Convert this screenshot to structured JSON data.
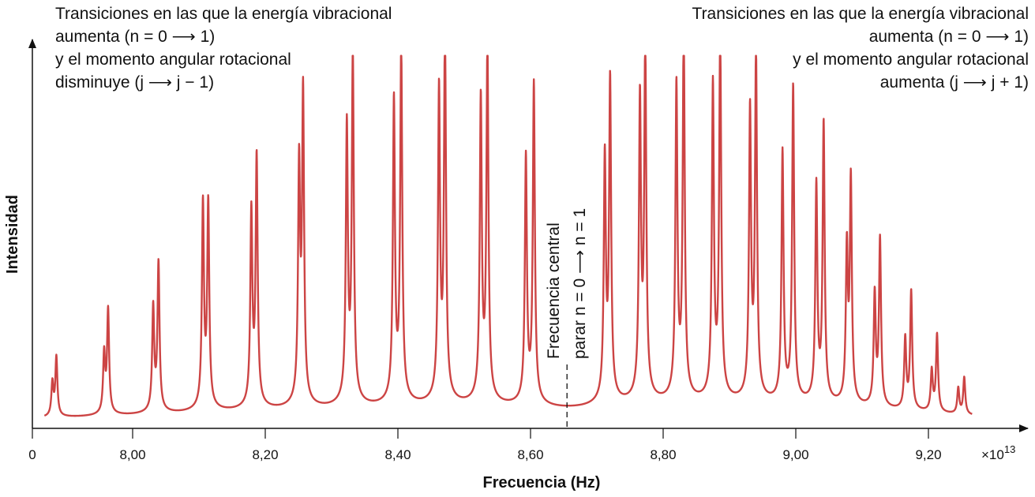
{
  "chart_data": {
    "type": "line",
    "title": "",
    "xlabel": "Frecuencia (Hz)",
    "ylabel": "Intensidad",
    "x_multiplier": "×10",
    "x_multiplier_exp": "13",
    "x_ticks": [
      "0",
      "8,00",
      "8,20",
      "8,40",
      "8,60",
      "8,80",
      "9,00",
      "9,20"
    ],
    "x_tick_values": [
      null,
      8.0,
      8.2,
      8.4,
      8.6,
      8.8,
      9.0,
      9.2
    ],
    "xlim": [
      7.85,
      9.3
    ],
    "ylim": [
      0,
      1.05
    ],
    "grid": false,
    "line_color": "#cc4444",
    "central_frequency": 8.655,
    "peaks": [
      {
        "f": 7.879,
        "i": 0.09
      },
      {
        "f": 7.885,
        "i": 0.16
      },
      {
        "f": 7.957,
        "i": 0.16
      },
      {
        "f": 7.963,
        "i": 0.28
      },
      {
        "f": 8.031,
        "i": 0.28
      },
      {
        "f": 8.039,
        "i": 0.4
      },
      {
        "f": 8.106,
        "i": 0.55
      },
      {
        "f": 8.114,
        "i": 0.55
      },
      {
        "f": 8.179,
        "i": 0.52
      },
      {
        "f": 8.187,
        "i": 0.67
      },
      {
        "f": 8.251,
        "i": 0.63
      },
      {
        "f": 8.257,
        "i": 0.83
      },
      {
        "f": 8.323,
        "i": 0.74
      },
      {
        "f": 8.332,
        "i": 0.94
      },
      {
        "f": 8.394,
        "i": 0.81
      },
      {
        "f": 8.405,
        "i": 0.96
      },
      {
        "f": 8.462,
        "i": 0.83
      },
      {
        "f": 8.471,
        "i": 1.0
      },
      {
        "f": 8.525,
        "i": 0.81
      },
      {
        "f": 8.535,
        "i": 0.96
      },
      {
        "f": 8.593,
        "i": 0.66
      },
      {
        "f": 8.605,
        "i": 0.86
      },
      {
        "f": 8.712,
        "i": 0.65
      },
      {
        "f": 8.72,
        "i": 0.86
      },
      {
        "f": 8.765,
        "i": 0.8
      },
      {
        "f": 8.773,
        "i": 0.96
      },
      {
        "f": 8.82,
        "i": 0.84
      },
      {
        "f": 8.831,
        "i": 1.0
      },
      {
        "f": 8.875,
        "i": 0.84
      },
      {
        "f": 8.886,
        "i": 0.99
      },
      {
        "f": 8.931,
        "i": 0.77
      },
      {
        "f": 8.94,
        "i": 0.93
      },
      {
        "f": 8.98,
        "i": 0.67
      },
      {
        "f": 8.996,
        "i": 0.85
      },
      {
        "f": 9.031,
        "i": 0.58
      },
      {
        "f": 9.042,
        "i": 0.75
      },
      {
        "f": 9.077,
        "i": 0.41
      },
      {
        "f": 9.083,
        "i": 0.6
      },
      {
        "f": 9.119,
        "i": 0.3
      },
      {
        "f": 9.127,
        "i": 0.45
      },
      {
        "f": 9.165,
        "i": 0.19
      },
      {
        "f": 9.174,
        "i": 0.32
      },
      {
        "f": 9.205,
        "i": 0.11
      },
      {
        "f": 9.213,
        "i": 0.21
      },
      {
        "f": 9.245,
        "i": 0.07
      },
      {
        "f": 9.254,
        "i": 0.1
      }
    ],
    "annotations": {
      "left": [
        "Transiciones en las que la energía vibracional",
        "aumenta  (n = 0 ⟶ 1)",
        "y el momento angular rotacional",
        "disminuye (j ⟶ j − 1)"
      ],
      "right": [
        "Transiciones en las que la energía vibracional",
        "aumenta (n = 0 ⟶ 1)",
        "y el momento angular rotacional",
        "aumenta (j ⟶ j + 1)"
      ],
      "center": [
        "Frecuencia central",
        "parar n = 0 ⟶ n = 1"
      ]
    }
  }
}
